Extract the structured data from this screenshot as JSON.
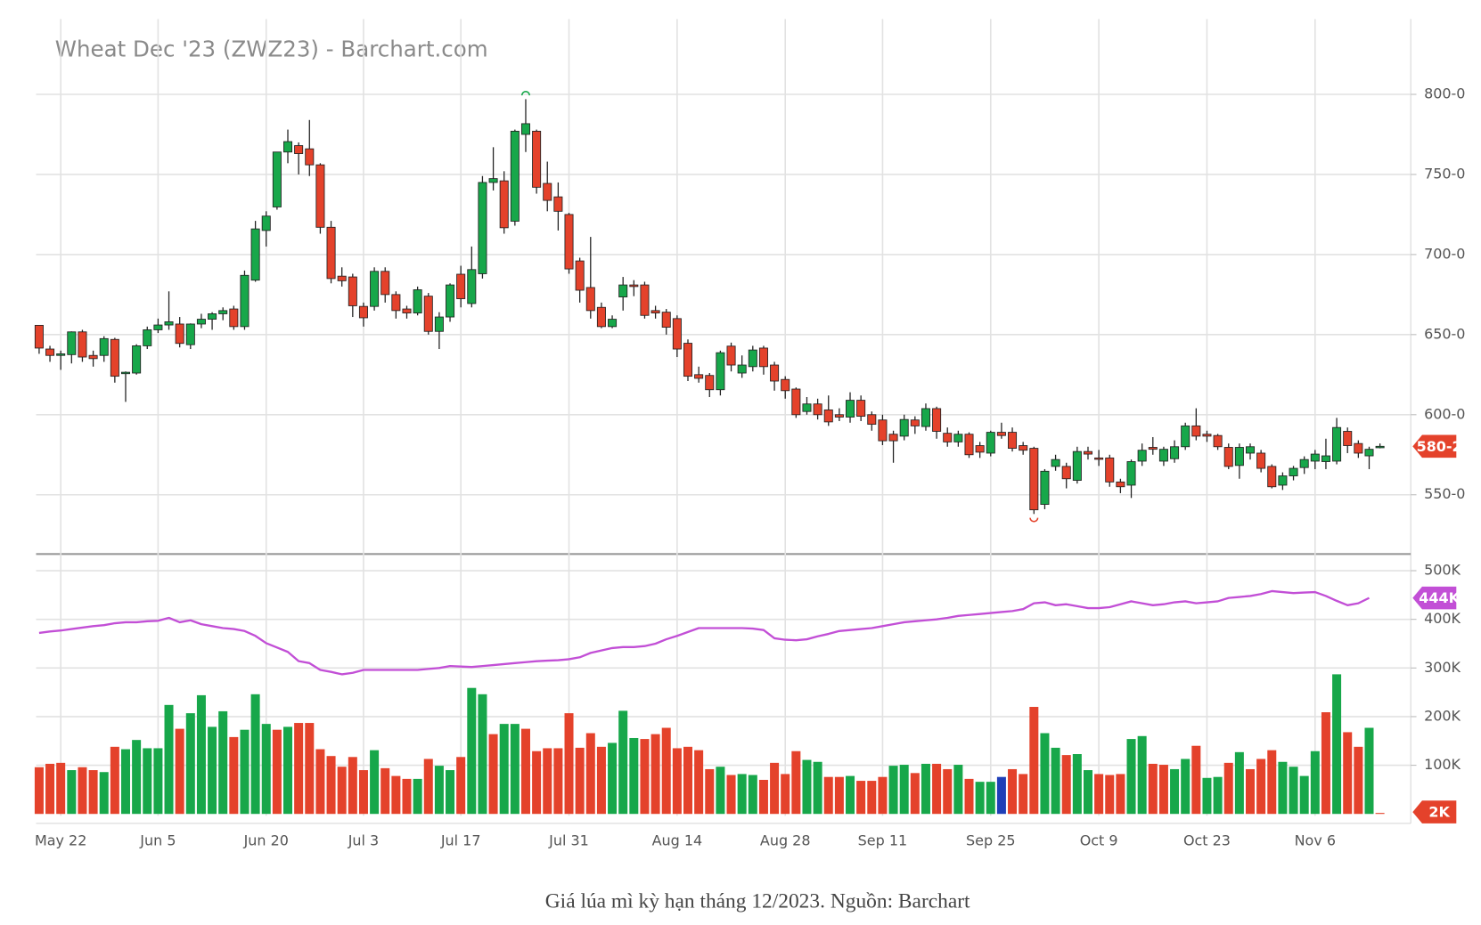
{
  "chart_data": {
    "type": "candlestick",
    "title": "Wheat Dec '23 (ZWZ23) - Barchart.com",
    "caption": "Giá lúa mì kỳ hạn tháng 12/2023. Nguồn: Barchart",
    "categories": [
      null,
      null,
      "May 22",
      null,
      null,
      null,
      null,
      null,
      null,
      null,
      null,
      "Jun 5",
      null,
      null,
      null,
      null,
      null,
      null,
      null,
      null,
      null,
      "Jun 20",
      null,
      null,
      null,
      null,
      null,
      null,
      null,
      null,
      "Jul 3",
      null,
      null,
      null,
      null,
      null,
      null,
      null,
      null,
      "Jul 17",
      null,
      null,
      null,
      null,
      null,
      null,
      null,
      null,
      null,
      "Jul 31",
      null,
      null,
      null,
      null,
      null,
      null,
      null,
      null,
      null,
      "Aug 14",
      null,
      null,
      null,
      null,
      null,
      null,
      null,
      null,
      null,
      "Aug 28",
      null,
      null,
      null,
      null,
      null,
      null,
      null,
      null,
      "Sep 11",
      null,
      null,
      null,
      null,
      null,
      null,
      null,
      null,
      null,
      "Sep 25",
      null,
      null,
      null,
      null,
      null,
      null,
      null,
      null,
      null,
      "Oct 9",
      null,
      null,
      null,
      null,
      null,
      null,
      null,
      null,
      null,
      "Oct 23",
      null,
      null,
      null,
      null,
      null,
      null,
      null,
      null,
      null,
      "Nov 6",
      null,
      null,
      null,
      null,
      null,
      null
    ],
    "open": [
      655.8,
      641,
      637,
      637.5,
      651.7,
      637,
      637,
      647,
      626,
      626,
      643,
      653,
      656,
      656.6,
      643.7,
      656.6,
      659.6,
      663,
      666,
      655,
      684,
      715,
      729.7,
      764,
      768,
      766,
      756,
      717,
      686.5,
      686,
      667.6,
      667.6,
      689.5,
      675,
      666,
      663.5,
      674,
      652,
      661,
      687.7,
      669.4,
      688,
      745,
      746,
      720.8,
      775,
      777,
      744.4,
      736,
      725,
      696,
      679.4,
      667,
      655,
      673.5,
      681,
      681,
      665,
      664,
      660,
      644.6,
      625,
      624.5,
      615.6,
      642.8,
      626,
      630,
      641.6,
      631,
      622,
      616,
      602,
      606.7,
      603,
      600,
      598.5,
      609,
      600,
      596.7,
      587.8,
      586.6,
      596.7,
      592.6,
      603.8,
      588.4,
      583,
      587.8,
      580.7,
      576,
      589,
      589,
      580.7,
      579,
      544,
      567.7,
      567.7,
      559,
      577,
      573,
      573,
      558,
      556,
      571,
      579.6,
      571,
      572.5,
      580,
      593,
      587.8,
      587,
      579.6,
      568.3,
      576,
      576,
      567.7,
      556,
      561.8,
      567,
      571,
      570.7,
      571,
      589.6,
      582,
      574.3,
      580
    ],
    "high": [
      656,
      643,
      640,
      652,
      653,
      640,
      649,
      648,
      627,
      644,
      655,
      660,
      677,
      661,
      657,
      663,
      664,
      667,
      668,
      690,
      721,
      727,
      764,
      778,
      770,
      784,
      757,
      721,
      692,
      688,
      670,
      692,
      692,
      677,
      668,
      680,
      676,
      664,
      682,
      693,
      705,
      749,
      767,
      752,
      778,
      797,
      778,
      758,
      745,
      726,
      698,
      711,
      670,
      662,
      686,
      684,
      683,
      668,
      666,
      662,
      647,
      630,
      626,
      640,
      645,
      637,
      643,
      643,
      633,
      624,
      617,
      611,
      610,
      612,
      604,
      614,
      612,
      602,
      600,
      590,
      600,
      599,
      607,
      605,
      592,
      590,
      589,
      583,
      590,
      595,
      592,
      583,
      580,
      566,
      575,
      570,
      580,
      580,
      578,
      575,
      560,
      572,
      582,
      586,
      580,
      584,
      595,
      604,
      590,
      588,
      582,
      582,
      582,
      578,
      569,
      564,
      568,
      574,
      578,
      585,
      598,
      592,
      584,
      580,
      582
    ],
    "low": [
      638,
      633,
      628,
      632,
      633,
      630,
      633,
      620,
      608,
      625,
      641,
      651,
      653,
      642,
      641,
      654,
      653,
      659,
      653,
      653,
      683,
      705,
      728,
      757,
      750,
      749,
      713,
      682,
      680,
      661,
      655,
      665,
      670,
      660,
      660,
      662,
      650,
      641,
      658,
      667,
      667,
      685,
      740,
      713,
      718,
      764,
      738,
      727,
      715,
      688,
      670,
      660,
      654,
      654,
      665,
      674,
      660,
      660,
      650,
      636,
      621,
      620,
      611,
      612,
      627,
      623,
      627,
      625,
      615,
      610,
      598,
      600,
      597,
      593,
      596,
      595,
      596,
      590,
      581,
      570,
      584,
      588,
      590,
      585,
      580,
      580,
      573,
      573,
      574,
      585,
      577,
      575,
      538,
      541,
      565,
      554,
      557,
      572,
      568,
      555,
      551,
      548,
      568,
      575,
      568,
      570,
      578,
      584,
      583,
      578,
      566,
      560,
      572,
      564,
      554,
      553,
      559,
      563,
      566,
      566,
      569,
      576,
      573,
      566,
      579
    ],
    "close": [
      641.6,
      637,
      638,
      651.7,
      636,
      635,
      647.5,
      624,
      626.5,
      643,
      653,
      656,
      658,
      644.5,
      656.6,
      659.6,
      663,
      665,
      655,
      687,
      716,
      724,
      764,
      770.5,
      763,
      756,
      717,
      685,
      683.6,
      668,
      660.5,
      689.5,
      675,
      665,
      663.5,
      678,
      652,
      661,
      681,
      672.4,
      690.6,
      745,
      747.4,
      716.7,
      777,
      781.7,
      742,
      733.8,
      727,
      691,
      677.7,
      665,
      655,
      659.6,
      681,
      680,
      662,
      663.5,
      654.6,
      641,
      624,
      622.7,
      615.6,
      638.7,
      631,
      631,
      640.4,
      630,
      621,
      615,
      600,
      606.7,
      600,
      595.5,
      598.5,
      609,
      599,
      594,
      583.7,
      583.7,
      597,
      593,
      603.8,
      589.6,
      583,
      587.8,
      575,
      576.6,
      589,
      587,
      579,
      577.8,
      540.6,
      564.7,
      572,
      560,
      577,
      575.4,
      572.5,
      558,
      555,
      570.7,
      577.8,
      578.4,
      578.4,
      580,
      593,
      586.6,
      586.6,
      580,
      567.7,
      579.6,
      580,
      566.5,
      555,
      561.8,
      566.5,
      572,
      575.4,
      574.3,
      592,
      580.7,
      576,
      578.4,
      580.25
    ],
    "last_label": "580-2",
    "up_color": "#17a74a",
    "down_color": "#e4422b",
    "ylim": [
      513,
      847
    ],
    "yticks": [
      {
        "value": 550,
        "label": "550-0"
      },
      {
        "value": 600,
        "label": "600-0"
      },
      {
        "value": 650,
        "label": "650-0"
      },
      {
        "value": 700,
        "label": "700-0"
      },
      {
        "value": 750,
        "label": "750-0"
      },
      {
        "value": 800,
        "label": "800-0"
      }
    ],
    "grid": true,
    "volume": {
      "type": "bar",
      "values": [
        96000,
        103000,
        105000,
        90000,
        96000,
        90000,
        86000,
        138000,
        133000,
        152000,
        135000,
        135000,
        224000,
        175000,
        207000,
        244000,
        179000,
        211000,
        158000,
        173000,
        246000,
        185000,
        173000,
        179000,
        187000,
        187000,
        133000,
        119000,
        97000,
        117000,
        90000,
        131000,
        94000,
        78000,
        72000,
        72000,
        113000,
        99000,
        90000,
        117000,
        259000,
        246000,
        164000,
        185000,
        185000,
        175000,
        129000,
        135000,
        135000,
        207000,
        136000,
        166000,
        138000,
        146000,
        212000,
        156000,
        154000,
        164000,
        177000,
        135000,
        138000,
        131000,
        92000,
        97000,
        80000,
        82000,
        80000,
        70000,
        105000,
        82000,
        129000,
        111000,
        107000,
        76000,
        76000,
        78000,
        68000,
        68000,
        76000,
        99000,
        101000,
        84000,
        103000,
        103000,
        92000,
        101000,
        72000,
        66000,
        66000,
        76000,
        92000,
        82000,
        220000,
        166000,
        136000,
        121000,
        123000,
        90000,
        82000,
        80000,
        82000,
        154000,
        160000,
        103000,
        101000,
        92000,
        113000,
        140000,
        74000,
        76000,
        105000,
        127000,
        92000,
        113000,
        131000,
        107000,
        97000,
        78000,
        129000,
        209000,
        287000,
        168000,
        138000,
        177000,
        2000
      ],
      "palette": [
        "#e4422b",
        "#17a74a",
        "#1f3fb8"
      ],
      "color_index": [
        0,
        0,
        0,
        1,
        0,
        0,
        1,
        0,
        1,
        1,
        1,
        1,
        1,
        0,
        1,
        1,
        1,
        1,
        0,
        1,
        1,
        1,
        0,
        1,
        0,
        0,
        0,
        0,
        0,
        0,
        0,
        1,
        0,
        0,
        0,
        1,
        0,
        1,
        1,
        0,
        1,
        1,
        0,
        1,
        1,
        0,
        0,
        0,
        0,
        0,
        0,
        0,
        0,
        1,
        1,
        1,
        0,
        0,
        0,
        0,
        0,
        0,
        0,
        1,
        0,
        1,
        1,
        0,
        0,
        0,
        0,
        1,
        1,
        0,
        0,
        1,
        0,
        0,
        0,
        1,
        1,
        0,
        1,
        0,
        0,
        1,
        0,
        1,
        1,
        2,
        0,
        0,
        0,
        1,
        1,
        0,
        1,
        1,
        0,
        0,
        0,
        1,
        1,
        0,
        0,
        1,
        1,
        0,
        1,
        1,
        0,
        1,
        0,
        0,
        0,
        1,
        1,
        1,
        1,
        0,
        1,
        0,
        0,
        1,
        0
      ],
      "last_label": "2K",
      "ylim": [
        0,
        520000
      ],
      "yticks": [
        {
          "value": 100000,
          "label": "100K"
        },
        {
          "value": 200000,
          "label": "200K"
        },
        {
          "value": 300000,
          "label": "300K"
        },
        {
          "value": 400000,
          "label": "400K"
        },
        {
          "value": 500000,
          "label": "500K"
        }
      ],
      "open_interest": {
        "color": "#c24fd6",
        "values": [
          372000,
          375000,
          377000,
          380000,
          383000,
          386000,
          388000,
          392000,
          394000,
          394000,
          396000,
          397000,
          403000,
          394000,
          398000,
          390000,
          386000,
          382000,
          380000,
          376000,
          366000,
          351000,
          342000,
          333000,
          314000,
          310000,
          296000,
          292000,
          287000,
          290000,
          296000,
          296000,
          296000,
          296000,
          296000,
          296000,
          298000,
          300000,
          304000,
          303000,
          302000,
          304000,
          306000,
          308000,
          310000,
          312000,
          314000,
          315000,
          316000,
          318000,
          322000,
          331000,
          336000,
          341000,
          343000,
          343000,
          345000,
          350000,
          359000,
          366000,
          374000,
          382000,
          382000,
          382000,
          382000,
          382000,
          381000,
          378000,
          361000,
          358000,
          357000,
          359000,
          365000,
          370000,
          376000,
          378000,
          380000,
          382000,
          386000,
          390000,
          394000,
          396000,
          398000,
          400000,
          403000,
          407000,
          409000,
          411000,
          413000,
          415000,
          417000,
          421000,
          433000,
          435000,
          429000,
          431000,
          427000,
          423000,
          423000,
          425000,
          431000,
          437000,
          433000,
          429000,
          431000,
          435000,
          437000,
          433000,
          435000,
          437000,
          444000,
          446000,
          448000,
          452000,
          458000,
          456000,
          454000,
          455000,
          456000,
          448000,
          438000,
          429000,
          433000,
          444000
        ],
        "last_label": "444K"
      }
    }
  }
}
